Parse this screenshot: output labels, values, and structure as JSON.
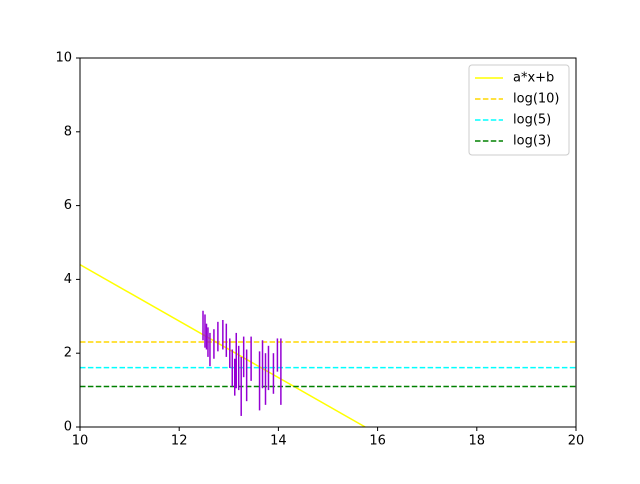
{
  "chart_data": {
    "type": "line",
    "xlim": [
      10,
      20
    ],
    "xticks": [
      10,
      12,
      14,
      16,
      18,
      20
    ],
    "ylim": [
      0,
      10
    ],
    "yticks": [
      0,
      2,
      4,
      6,
      8,
      10
    ],
    "legend": "upper right",
    "series": [
      {
        "name": "a*x+b",
        "color": "#ffff00",
        "linestyle": "solid",
        "x": [
          10,
          15.75
        ],
        "values": [
          4.4,
          0
        ]
      },
      {
        "name": "log(10)",
        "color": "#ffd700",
        "linestyle": "dashed",
        "x": [
          10,
          20
        ],
        "values": [
          2.303,
          2.303
        ]
      },
      {
        "name": "log(5)",
        "color": "#00ffff",
        "linestyle": "dashed",
        "x": [
          10,
          20
        ],
        "values": [
          1.609,
          1.609
        ]
      },
      {
        "name": "log(3)",
        "color": "#008000",
        "linestyle": "dashed",
        "x": [
          10,
          20
        ],
        "values": [
          1.099,
          1.099
        ]
      }
    ],
    "errorbar": {
      "color": "#9400d3",
      "x": [
        12.48,
        12.52,
        12.55,
        12.58,
        12.62,
        12.7,
        12.78,
        12.88,
        12.95,
        13.02,
        13.07,
        13.12,
        13.15,
        13.2,
        13.25,
        13.3,
        13.36,
        13.45,
        13.62,
        13.68,
        13.74,
        13.8,
        13.9,
        13.98,
        14.05
      ],
      "values": [
        2.75,
        2.6,
        2.45,
        2.3,
        2.1,
        2.25,
        2.45,
        2.5,
        2.35,
        2.0,
        1.6,
        1.35,
        1.8,
        1.6,
        1.1,
        1.9,
        1.4,
        1.85,
        1.25,
        1.7,
        1.3,
        1.6,
        1.45,
        1.95,
        1.5
      ],
      "errors": [
        0.4,
        0.45,
        0.35,
        0.4,
        0.45,
        0.4,
        0.4,
        0.4,
        0.45,
        0.4,
        0.5,
        0.5,
        0.75,
        0.6,
        0.8,
        0.55,
        0.7,
        0.6,
        0.8,
        0.65,
        0.7,
        0.6,
        0.55,
        0.45,
        0.9
      ]
    }
  }
}
